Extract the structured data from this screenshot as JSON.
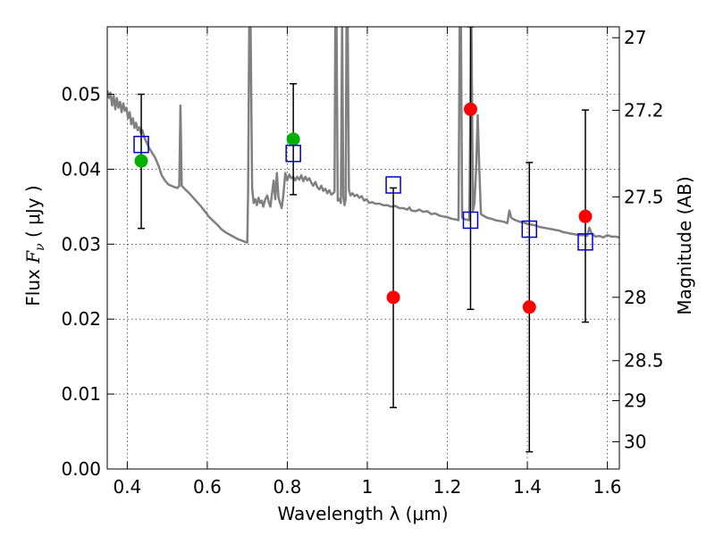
{
  "chart_data": {
    "type": "scatter",
    "xlabel": "Wavelength  λ (μm)",
    "ylabel_left_prefix": "Flux  ",
    "ylabel_left_symbol": "F",
    "ylabel_left_subscript": "ν",
    "ylabel_left_suffix": " ( μJy )",
    "ylabel_right": "Magnitude (AB)",
    "xlim": [
      0.35,
      1.63
    ],
    "ylim": [
      0.0,
      0.059
    ],
    "grid": true,
    "x_ticks": [
      {
        "value": 0.4,
        "label": "0.4"
      },
      {
        "value": 0.6,
        "label": "0.6"
      },
      {
        "value": 0.8,
        "label": "0.8"
      },
      {
        "value": 1.0,
        "label": "1"
      },
      {
        "value": 1.2,
        "label": "1.2"
      },
      {
        "value": 1.4,
        "label": "1.4"
      },
      {
        "value": 1.6,
        "label": "1.6"
      }
    ],
    "y_ticks": [
      {
        "value": 0.0,
        "label": "0.00"
      },
      {
        "value": 0.01,
        "label": "0.01"
      },
      {
        "value": 0.02,
        "label": "0.02"
      },
      {
        "value": 0.03,
        "label": "0.03"
      },
      {
        "value": 0.04,
        "label": "0.04"
      },
      {
        "value": 0.05,
        "label": "0.05"
      }
    ],
    "mag_ticks": [
      {
        "value": 27.0,
        "label": "27"
      },
      {
        "value": 27.2,
        "label": "27.2"
      },
      {
        "value": 27.5,
        "label": "27.5"
      },
      {
        "value": 28.0,
        "label": "28"
      },
      {
        "value": 28.5,
        "label": "28.5"
      },
      {
        "value": 29.0,
        "label": "29"
      },
      {
        "value": 30.0,
        "label": "30"
      }
    ],
    "series": [
      {
        "kind": "spectrum",
        "color": "#808080",
        "points": [
          [
            0.35,
            0.0505
          ],
          [
            0.355,
            0.0495
          ],
          [
            0.358,
            0.0502
          ],
          [
            0.362,
            0.0485
          ],
          [
            0.366,
            0.0498
          ],
          [
            0.37,
            0.048
          ],
          [
            0.374,
            0.0495
          ],
          [
            0.378,
            0.0482
          ],
          [
            0.382,
            0.049
          ],
          [
            0.386,
            0.0476
          ],
          [
            0.39,
            0.0488
          ],
          [
            0.394,
            0.0478
          ],
          [
            0.398,
            0.0482
          ],
          [
            0.402,
            0.0468
          ],
          [
            0.406,
            0.0476
          ],
          [
            0.41,
            0.046
          ],
          [
            0.414,
            0.0468
          ],
          [
            0.418,
            0.0455
          ],
          [
            0.422,
            0.0462
          ],
          [
            0.426,
            0.0452
          ],
          [
            0.43,
            0.0456
          ],
          [
            0.434,
            0.0448
          ],
          [
            0.438,
            0.0452
          ],
          [
            0.442,
            0.0443
          ],
          [
            0.448,
            0.0436
          ],
          [
            0.455,
            0.0428
          ],
          [
            0.462,
            0.0422
          ],
          [
            0.47,
            0.0415
          ],
          [
            0.478,
            0.0405
          ],
          [
            0.486,
            0.0392
          ],
          [
            0.494,
            0.0385
          ],
          [
            0.502,
            0.038
          ],
          [
            0.51,
            0.0378
          ],
          [
            0.518,
            0.0376
          ],
          [
            0.526,
            0.0375
          ],
          [
            0.53,
            0.0378
          ],
          [
            0.533,
            0.0485
          ],
          [
            0.536,
            0.0378
          ],
          [
            0.545,
            0.0373
          ],
          [
            0.555,
            0.0368
          ],
          [
            0.565,
            0.0362
          ],
          [
            0.575,
            0.0356
          ],
          [
            0.585,
            0.035
          ],
          [
            0.595,
            0.0343
          ],
          [
            0.605,
            0.0336
          ],
          [
            0.615,
            0.0331
          ],
          [
            0.625,
            0.0326
          ],
          [
            0.635,
            0.032
          ],
          [
            0.645,
            0.0316
          ],
          [
            0.655,
            0.0313
          ],
          [
            0.665,
            0.031
          ],
          [
            0.675,
            0.0307
          ],
          [
            0.685,
            0.0305
          ],
          [
            0.695,
            0.0303
          ],
          [
            0.7,
            0.0302
          ],
          [
            0.702,
            0.037
          ],
          [
            0.705,
            0.06
          ],
          [
            0.708,
            0.06
          ],
          [
            0.712,
            0.0375
          ],
          [
            0.716,
            0.0355
          ],
          [
            0.72,
            0.036
          ],
          [
            0.724,
            0.0352
          ],
          [
            0.728,
            0.0362
          ],
          [
            0.732,
            0.0355
          ],
          [
            0.736,
            0.0358
          ],
          [
            0.74,
            0.035
          ],
          [
            0.745,
            0.036
          ],
          [
            0.75,
            0.0365
          ],
          [
            0.754,
            0.0355
          ],
          [
            0.758,
            0.035
          ],
          [
            0.762,
            0.0368
          ],
          [
            0.766,
            0.0385
          ],
          [
            0.77,
            0.036
          ],
          [
            0.774,
            0.0395
          ],
          [
            0.778,
            0.0362
          ],
          [
            0.782,
            0.0355
          ],
          [
            0.786,
            0.0348
          ],
          [
            0.79,
            0.0365
          ],
          [
            0.795,
            0.0395
          ],
          [
            0.8,
            0.0385
          ],
          [
            0.805,
            0.0393
          ],
          [
            0.81,
            0.0388
          ],
          [
            0.815,
            0.039
          ],
          [
            0.82,
            0.0385
          ],
          [
            0.825,
            0.039
          ],
          [
            0.83,
            0.0386
          ],
          [
            0.835,
            0.0392
          ],
          [
            0.84,
            0.0384
          ],
          [
            0.845,
            0.039
          ],
          [
            0.85,
            0.0385
          ],
          [
            0.855,
            0.0388
          ],
          [
            0.86,
            0.0382
          ],
          [
            0.865,
            0.0378
          ],
          [
            0.87,
            0.0383
          ],
          [
            0.875,
            0.0376
          ],
          [
            0.88,
            0.0373
          ],
          [
            0.885,
            0.0378
          ],
          [
            0.89,
            0.0371
          ],
          [
            0.895,
            0.0374
          ],
          [
            0.9,
            0.0368
          ],
          [
            0.905,
            0.0372
          ],
          [
            0.91,
            0.0366
          ],
          [
            0.915,
            0.0368
          ],
          [
            0.918,
            0.037
          ],
          [
            0.92,
            0.06
          ],
          [
            0.923,
            0.06
          ],
          [
            0.926,
            0.0358
          ],
          [
            0.93,
            0.036
          ],
          [
            0.934,
            0.0355
          ],
          [
            0.937,
            0.06
          ],
          [
            0.94,
            0.0365
          ],
          [
            0.943,
            0.0352
          ],
          [
            0.946,
            0.036
          ],
          [
            0.948,
            0.06
          ],
          [
            0.951,
            0.06
          ],
          [
            0.954,
            0.0372
          ],
          [
            0.958,
            0.0365
          ],
          [
            0.963,
            0.0368
          ],
          [
            0.968,
            0.0364
          ],
          [
            0.974,
            0.0366
          ],
          [
            0.98,
            0.0362
          ],
          [
            0.986,
            0.0364
          ],
          [
            0.992,
            0.0358
          ],
          [
            0.998,
            0.036
          ],
          [
            1.005,
            0.0355
          ],
          [
            1.012,
            0.0356
          ],
          [
            1.02,
            0.0354
          ],
          [
            1.03,
            0.0354
          ],
          [
            1.04,
            0.0352
          ],
          [
            1.05,
            0.0352
          ],
          [
            1.06,
            0.035
          ],
          [
            1.07,
            0.0351
          ],
          [
            1.08,
            0.0348
          ],
          [
            1.09,
            0.0348
          ],
          [
            1.1,
            0.0346
          ],
          [
            1.105,
            0.0349
          ],
          [
            1.11,
            0.0345
          ],
          [
            1.12,
            0.0344
          ],
          [
            1.13,
            0.0346
          ],
          [
            1.14,
            0.0343
          ],
          [
            1.15,
            0.0344
          ],
          [
            1.16,
            0.034
          ],
          [
            1.17,
            0.0341
          ],
          [
            1.18,
            0.0338
          ],
          [
            1.19,
            0.0337
          ],
          [
            1.2,
            0.0336
          ],
          [
            1.21,
            0.0334
          ],
          [
            1.22,
            0.0333
          ],
          [
            1.228,
            0.0332
          ],
          [
            1.231,
            0.06
          ],
          [
            1.234,
            0.06
          ],
          [
            1.237,
            0.0335
          ],
          [
            1.245,
            0.0333
          ],
          [
            1.255,
            0.0332
          ],
          [
            1.26,
            0.06
          ],
          [
            1.264,
            0.0345
          ],
          [
            1.268,
            0.0355
          ],
          [
            1.272,
            0.04
          ],
          [
            1.276,
            0.0472
          ],
          [
            1.28,
            0.04
          ],
          [
            1.284,
            0.034
          ],
          [
            1.29,
            0.0338
          ],
          [
            1.3,
            0.0335
          ],
          [
            1.31,
            0.0334
          ],
          [
            1.32,
            0.0332
          ],
          [
            1.33,
            0.0331
          ],
          [
            1.34,
            0.033
          ],
          [
            1.35,
            0.0328
          ],
          [
            1.355,
            0.0345
          ],
          [
            1.36,
            0.0335
          ],
          [
            1.37,
            0.0332
          ],
          [
            1.38,
            0.033
          ],
          [
            1.39,
            0.0329
          ],
          [
            1.4,
            0.0327
          ],
          [
            1.41,
            0.0326
          ],
          [
            1.42,
            0.0325
          ],
          [
            1.43,
            0.0323
          ],
          [
            1.44,
            0.0322
          ],
          [
            1.45,
            0.0321
          ],
          [
            1.46,
            0.032
          ],
          [
            1.47,
            0.0319
          ],
          [
            1.48,
            0.0318
          ],
          [
            1.49,
            0.0316
          ],
          [
            1.5,
            0.0315
          ],
          [
            1.51,
            0.0314
          ],
          [
            1.52,
            0.0313
          ],
          [
            1.53,
            0.0312
          ],
          [
            1.54,
            0.0312
          ],
          [
            1.55,
            0.0311
          ],
          [
            1.555,
            0.0322
          ],
          [
            1.56,
            0.0315
          ],
          [
            1.57,
            0.031
          ],
          [
            1.58,
            0.0311
          ],
          [
            1.59,
            0.0309
          ],
          [
            1.6,
            0.0312
          ],
          [
            1.61,
            0.031
          ],
          [
            1.62,
            0.031
          ],
          [
            1.63,
            0.0309
          ]
        ]
      },
      {
        "kind": "errorbars",
        "color": "#000000",
        "points": [
          {
            "x": 0.435,
            "y": 0.0411,
            "lo": 0.0321,
            "hi": 0.05
          },
          {
            "x": 0.815,
            "y": 0.044,
            "lo": 0.0366,
            "hi": 0.0514
          },
          {
            "x": 1.065,
            "y": 0.0229,
            "lo": 0.0082,
            "hi": 0.0375
          },
          {
            "x": 1.258,
            "y": 0.048,
            "lo": 0.0213,
            "hi": 0.059
          },
          {
            "x": 1.405,
            "y": 0.0216,
            "lo": 0.0023,
            "hi": 0.0409
          },
          {
            "x": 1.545,
            "y": 0.0337,
            "lo": 0.0196,
            "hi": 0.0479
          }
        ]
      },
      {
        "kind": "filled-circles",
        "color": "#00b000",
        "points": [
          [
            0.435,
            0.0411
          ],
          [
            0.815,
            0.044
          ]
        ]
      },
      {
        "kind": "filled-circles",
        "color": "#ff0000",
        "points": [
          [
            1.065,
            0.0229
          ],
          [
            1.258,
            0.048
          ],
          [
            1.405,
            0.0216
          ],
          [
            1.545,
            0.0337
          ]
        ]
      },
      {
        "kind": "open-squares",
        "color": "#0000cc",
        "points": [
          [
            0.435,
            0.0433
          ],
          [
            0.815,
            0.0421
          ],
          [
            1.065,
            0.0379
          ],
          [
            1.258,
            0.0332
          ],
          [
            1.405,
            0.032
          ],
          [
            1.545,
            0.0303
          ]
        ]
      }
    ]
  }
}
